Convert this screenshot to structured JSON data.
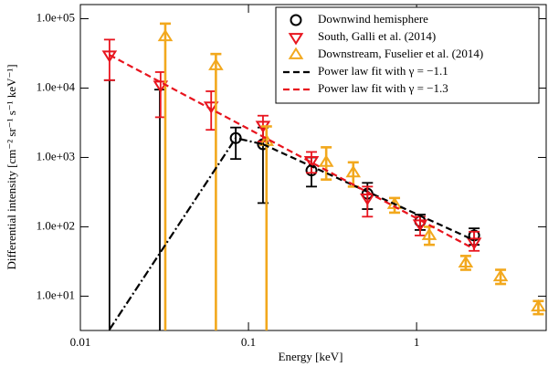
{
  "chart_data": {
    "type": "scatter",
    "xlabel": "Energy [keV]",
    "ylabel": "Differential intensity [cm⁻² sr⁻¹ s⁻¹ keV⁻¹]",
    "xlog": true,
    "ylog": true,
    "xlim": [
      0.01,
      5.9
    ],
    "ylim": [
      3.2,
      160000
    ],
    "xticks": [
      0.01,
      0.1,
      1
    ],
    "yticks": [
      {
        "value": 10,
        "label": "1.0e+01"
      },
      {
        "value": 100,
        "label": "1.0e+02"
      },
      {
        "value": 1000,
        "label": "1.0e+03"
      },
      {
        "value": 10000,
        "label": "1.0e+04"
      },
      {
        "value": 100000,
        "label": "1.0e+05"
      }
    ],
    "legend": "upper right",
    "series": [
      {
        "name": "Downwind hemisphere",
        "color": "#000000",
        "marker": "circle",
        "x": [
          0.0149,
          0.0297,
          0.084,
          0.122,
          0.237,
          0.51,
          1.05,
          2.2
        ],
        "values": [
          null,
          null,
          1900,
          1550,
          650,
          300,
          120,
          75
        ],
        "lower": [
          null,
          null,
          950,
          220,
          380,
          180,
          90,
          55
        ],
        "upper": [
          13000,
          9500,
          2700,
          2700,
          1000,
          430,
          150,
          95
        ]
      },
      {
        "name": "South, Galli et al. (2014)",
        "color": "#e8141e",
        "marker": "triangle-down",
        "x": [
          0.0149,
          0.03,
          0.06,
          0.122,
          0.237,
          0.51,
          1.05,
          2.2
        ],
        "values": [
          30000,
          11000,
          5500,
          2900,
          900,
          260,
          110,
          60
        ],
        "lower": [
          13000,
          3800,
          2500,
          1700,
          600,
          140,
          75,
          45
        ],
        "upper": [
          50000,
          17000,
          9000,
          4000,
          1200,
          380,
          140,
          85
        ]
      },
      {
        "name": "Downstream, Fuselier et al. (2014)",
        "color": "#f2a81d",
        "marker": "triangle-up",
        "x": [
          0.032,
          0.064,
          0.128,
          0.29,
          0.42,
          0.74,
          1.19,
          1.96,
          3.16,
          5.3
        ],
        "values": [
          55000,
          21000,
          1700,
          850,
          600,
          210,
          75,
          30,
          19,
          7
        ],
        "lower": [
          null,
          null,
          null,
          480,
          380,
          160,
          55,
          24,
          15,
          5.5
        ],
        "upper": [
          85000,
          31000,
          2800,
          1400,
          850,
          260,
          100,
          38,
          24,
          8.5
        ]
      },
      {
        "name": "Power law fit with γ = −1.1",
        "color": "#000000",
        "dash": "dashed",
        "x": [
          0.122,
          2.2
        ],
        "values": [
          1550,
          64
        ]
      },
      {
        "name": "Power law fit with γ = −1.3",
        "color": "#e8141e",
        "dash": "dashed",
        "x": [
          0.0149,
          2.2
        ],
        "values": [
          30000,
          48
        ]
      },
      {
        "color": "#000000",
        "dash": "dash-dot",
        "x": [
          0.0149,
          0.084,
          0.122
        ],
        "values": [
          3.3,
          1900,
          1550
        ]
      }
    ]
  }
}
